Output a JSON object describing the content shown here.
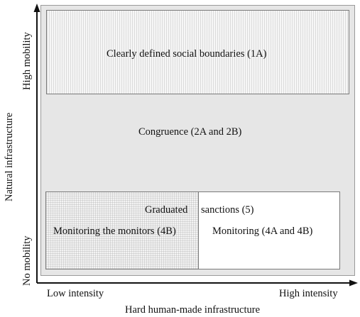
{
  "y_axis": {
    "title": "Natural infrastructure",
    "high_label": "High mobility",
    "low_label": "No mobility"
  },
  "x_axis": {
    "title": "Hard human-made infrastructure",
    "low_label": "Low intensity",
    "high_label": "High intensity"
  },
  "regions": {
    "boundaries": "Clearly defined social boundaries (1A)",
    "congruence": "Congruence (2A and 2B)",
    "sanctions_left": "Graduated",
    "sanctions_right": "sanctions (5)",
    "monitors": "Monitoring the monitors (4B)",
    "monitoring": "Monitoring (4A and 4B)"
  }
}
